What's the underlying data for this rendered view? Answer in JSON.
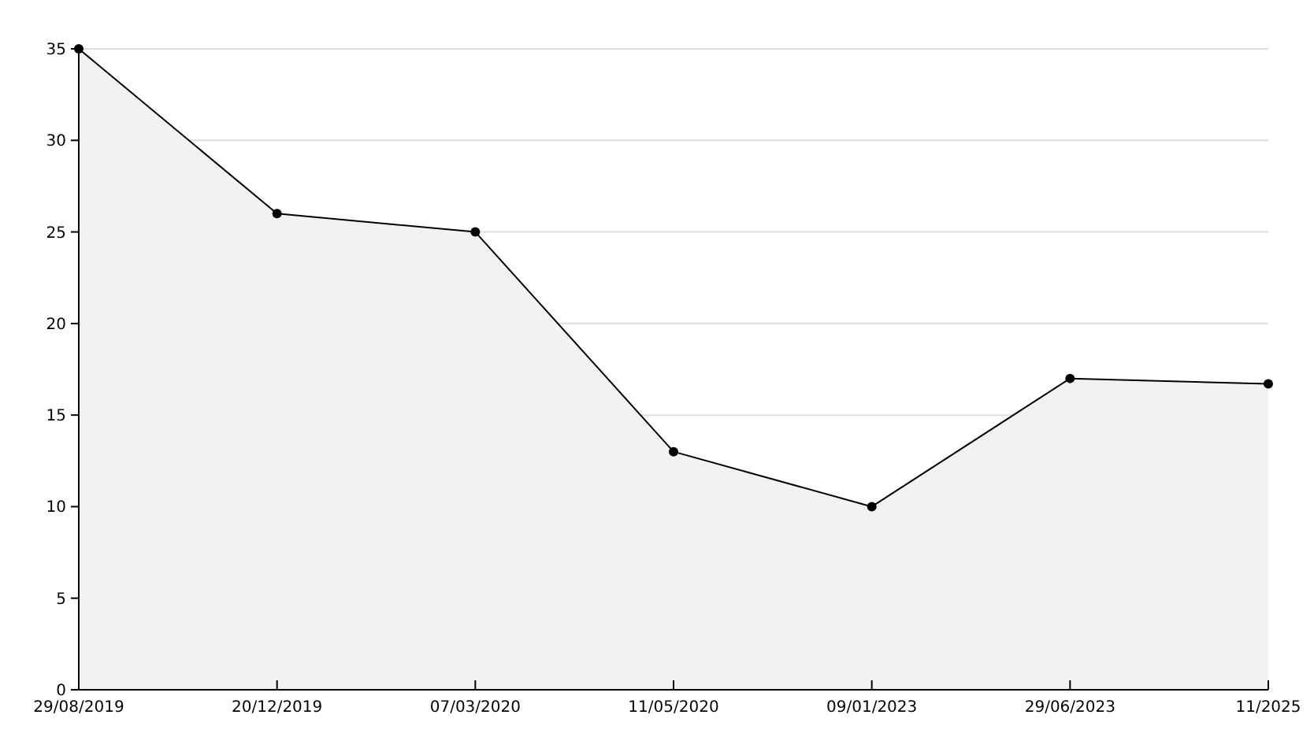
{
  "chart_data": {
    "type": "area",
    "categories": [
      "29/08/2019",
      "20/12/2019",
      "07/03/2020",
      "11/05/2020",
      "09/01/2023",
      "29/06/2023",
      "11/2025"
    ],
    "series": [
      {
        "color": "#000000",
        "values": [
          35,
          26,
          25,
          13,
          10,
          17,
          16.7
        ]
      }
    ],
    "ylim": [
      0,
      35
    ],
    "yticks": [
      0,
      5,
      10,
      15,
      20,
      25,
      30,
      35
    ],
    "grid": "y",
    "marker": "circle",
    "line_style": "solid"
  }
}
